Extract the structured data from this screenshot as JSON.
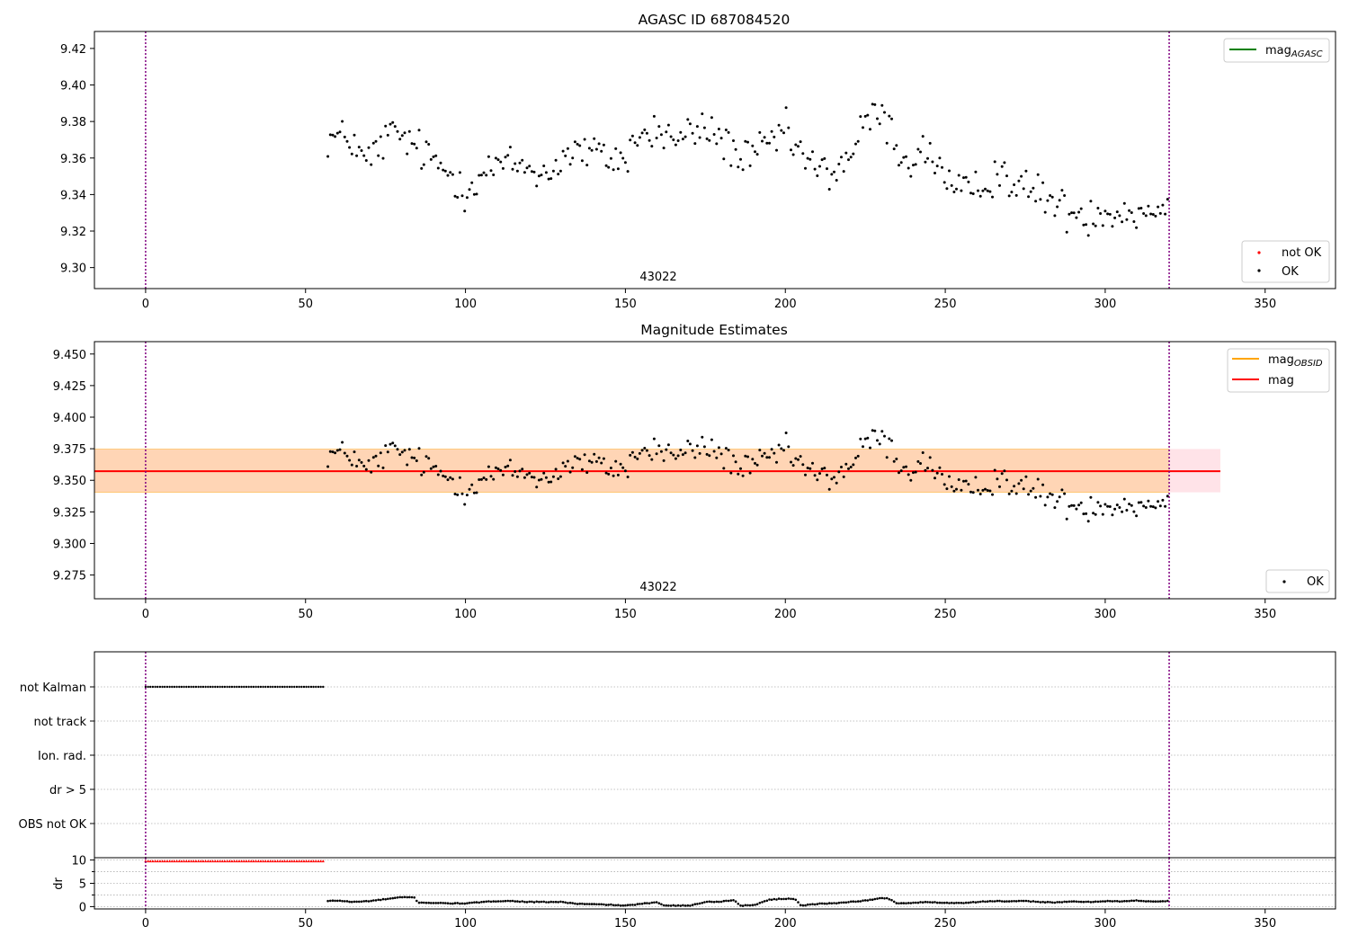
{
  "colors": {
    "ok": "#000000",
    "not_ok": "#ff0000",
    "agasc_line": "#008000",
    "obsid_line": "#ffa500",
    "mag_line": "#ff0000",
    "band_fill": "#ffc0cb",
    "obsid_band_fill": "#ffa500",
    "obsid_marker": "#800080",
    "grid": "#b0b0b0"
  },
  "chart_data": [
    {
      "type": "scatter",
      "title": "AGASC ID 687084520",
      "xlim": [
        -16,
        372
      ],
      "ylim": [
        9.2885,
        9.4293
      ],
      "xticks": [
        "0",
        "50",
        "100",
        "150",
        "200",
        "250",
        "300",
        "350"
      ],
      "yticks": [
        "9.30",
        "9.32",
        "9.34",
        "9.36",
        "9.38",
        "9.40",
        "9.42"
      ],
      "obsid_markers": [
        0,
        320
      ],
      "obsid_label": "43022",
      "legend_lines": [
        {
          "label": "mag",
          "subscript": "AGASC"
        }
      ],
      "legend_markers": [
        {
          "label": "not OK"
        },
        {
          "label": "OK"
        }
      ],
      "series": [
        {
          "name": "OK",
          "x_start": 57,
          "x_end": 320,
          "anchors": [
            [
              57,
              9.371
            ],
            [
              60,
              9.371
            ],
            [
              65,
              9.37
            ],
            [
              68,
              9.357
            ],
            [
              72,
              9.363
            ],
            [
              76,
              9.373
            ],
            [
              80,
              9.372
            ],
            [
              85,
              9.365
            ],
            [
              90,
              9.358
            ],
            [
              95,
              9.352
            ],
            [
              100,
              9.343
            ],
            [
              105,
              9.351
            ],
            [
              110,
              9.356
            ],
            [
              115,
              9.356
            ],
            [
              120,
              9.355
            ],
            [
              125,
              9.35
            ],
            [
              130,
              9.36
            ],
            [
              135,
              9.364
            ],
            [
              140,
              9.362
            ],
            [
              145,
              9.36
            ],
            [
              150,
              9.359
            ],
            [
              153,
              9.37
            ],
            [
              158,
              9.374
            ],
            [
              163,
              9.373
            ],
            [
              167,
              9.369
            ],
            [
              172,
              9.376
            ],
            [
              177,
              9.374
            ],
            [
              182,
              9.368
            ],
            [
              186,
              9.359
            ],
            [
              190,
              9.36
            ],
            [
              195,
              9.368
            ],
            [
              200,
              9.374
            ],
            [
              205,
              9.362
            ],
            [
              210,
              9.353
            ],
            [
              215,
              9.352
            ],
            [
              220,
              9.361
            ],
            [
              225,
              9.378
            ],
            [
              229,
              9.385
            ],
            [
              233,
              9.375
            ],
            [
              237,
              9.358
            ],
            [
              241,
              9.36
            ],
            [
              245,
              9.364
            ],
            [
              248,
              9.356
            ],
            [
              252,
              9.342
            ],
            [
              256,
              9.34
            ],
            [
              260,
              9.342
            ],
            [
              264,
              9.35
            ],
            [
              268,
              9.353
            ],
            [
              272,
              9.345
            ],
            [
              276,
              9.341
            ],
            [
              280,
              9.342
            ],
            [
              285,
              9.333
            ],
            [
              290,
              9.33
            ],
            [
              295,
              9.329
            ],
            [
              300,
              9.332
            ],
            [
              305,
              9.33
            ],
            [
              310,
              9.331
            ],
            [
              315,
              9.33
            ],
            [
              320,
              9.34
            ]
          ]
        }
      ]
    },
    {
      "type": "scatter",
      "title": "Magnitude Estimates",
      "xlim": [
        -16,
        372
      ],
      "ylim": [
        9.2562,
        9.4598
      ],
      "xticks": [
        "0",
        "50",
        "100",
        "150",
        "200",
        "250",
        "300",
        "350"
      ],
      "yticks": [
        "9.275",
        "9.300",
        "9.325",
        "9.350",
        "9.375",
        "9.400",
        "9.425",
        "9.450"
      ],
      "obsid_markers": [
        0,
        320
      ],
      "obsid_label": "43022",
      "mag": 9.3572,
      "mag_band": [
        9.3405,
        9.3748
      ],
      "mag_band_xrange": [
        -16,
        336
      ],
      "obsid_band_xrange": [
        -16,
        320
      ],
      "legend_lines": [
        {
          "label": "mag",
          "subscript": "OBSID"
        },
        {
          "label": "mag",
          "subscript": ""
        }
      ],
      "legend_markers": [
        {
          "label": "OK"
        }
      ]
    },
    {
      "type": "scatter",
      "xlim": [
        -16,
        372
      ],
      "flag_rows": [
        "not Kalman",
        "not track",
        "Ion. rad.",
        "dr > 5",
        "OBS not OK"
      ],
      "not_kalman_range": [
        0,
        56
      ],
      "obsid_markers": [
        0,
        320
      ]
    },
    {
      "type": "scatter",
      "ylabel": "dr",
      "xlim": [
        -16,
        372
      ],
      "ylim": [
        -0.5,
        10.5
      ],
      "xticks": [
        "0",
        "50",
        "100",
        "150",
        "200",
        "250",
        "300",
        "350"
      ],
      "yticks": [
        "0",
        "5",
        "10"
      ],
      "dr_clipped_range": [
        0,
        56
      ],
      "dr_clipped_value": 9.7,
      "obsid_markers": [
        0,
        320
      ],
      "dr_anchors": [
        [
          57,
          1.2
        ],
        [
          60,
          1.3
        ],
        [
          65,
          1.0
        ],
        [
          70,
          1.2
        ],
        [
          75,
          1.6
        ],
        [
          80,
          2.0
        ],
        [
          84,
          2.0
        ],
        [
          85,
          0.9
        ],
        [
          95,
          0.7
        ],
        [
          100,
          0.7
        ],
        [
          110,
          1.2
        ],
        [
          115,
          1.2
        ],
        [
          120,
          1.0
        ],
        [
          130,
          1.0
        ],
        [
          135,
          0.6
        ],
        [
          140,
          0.5
        ],
        [
          145,
          0.4
        ],
        [
          150,
          0.2
        ],
        [
          155,
          0.6
        ],
        [
          160,
          0.9
        ],
        [
          162,
          0.3
        ],
        [
          170,
          0.2
        ],
        [
          175,
          1.0
        ],
        [
          180,
          1.1
        ],
        [
          184,
          1.4
        ],
        [
          186,
          0.2
        ],
        [
          190,
          0.3
        ],
        [
          195,
          1.5
        ],
        [
          200,
          1.7
        ],
        [
          203,
          1.7
        ],
        [
          205,
          0.2
        ],
        [
          210,
          0.6
        ],
        [
          215,
          0.7
        ],
        [
          220,
          1.0
        ],
        [
          225,
          1.3
        ],
        [
          230,
          1.8
        ],
        [
          232,
          1.8
        ],
        [
          235,
          0.7
        ],
        [
          240,
          0.8
        ],
        [
          245,
          1.0
        ],
        [
          250,
          0.8
        ],
        [
          255,
          0.8
        ],
        [
          260,
          1.0
        ],
        [
          265,
          1.2
        ],
        [
          270,
          1.1
        ],
        [
          275,
          1.2
        ],
        [
          280,
          1.0
        ],
        [
          285,
          0.9
        ],
        [
          290,
          1.1
        ],
        [
          295,
          1.0
        ],
        [
          300,
          1.2
        ],
        [
          305,
          1.1
        ],
        [
          310,
          1.3
        ],
        [
          315,
          1.1
        ],
        [
          320,
          1.2
        ]
      ]
    }
  ]
}
